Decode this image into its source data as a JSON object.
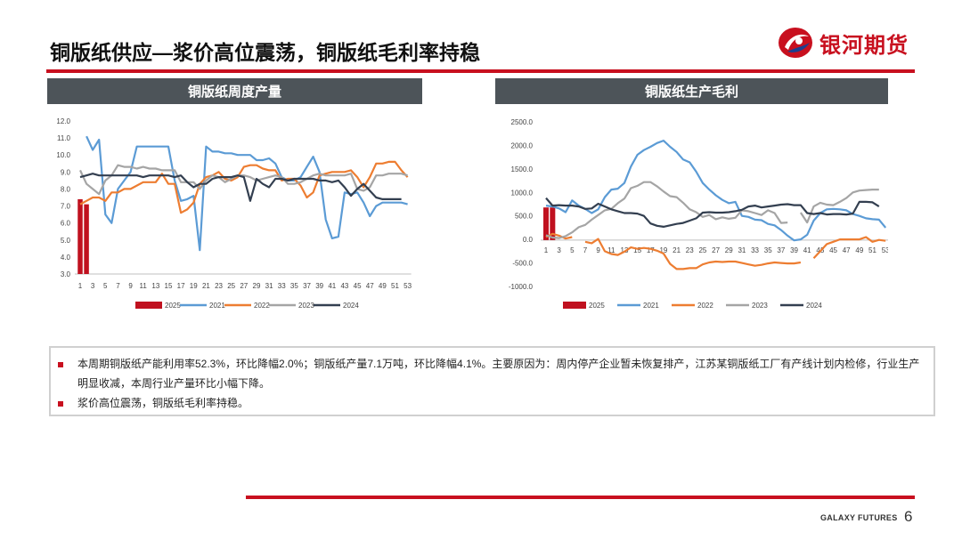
{
  "header": {
    "title": "铜版纸供应—浆价高位震荡，铜版纸毛利率持稳"
  },
  "logo": {
    "text": "银河期货",
    "icon": "galaxy-futures-logo-icon",
    "color": "#c8101f"
  },
  "footer": {
    "brand": "GALAXY FUTURES",
    "page": "6"
  },
  "notes": [
    "本周期铜版纸产能利用率52.3%，环比降幅2.0%；铜版纸产量7.1万吨，环比降幅4.1%。主要原因为：周内停产企业暂未恢复排产，江苏某铜版纸工厂有产线计划内检修，行业生产明显收减，本周行业产量环比小幅下降。",
    "浆价高位震荡，铜版纸毛利率持稳。"
  ],
  "chart_data": [
    {
      "type": "line",
      "title": "铜版纸周度产量",
      "ylim": [
        3.0,
        12.0
      ],
      "yticks": [
        "3.0",
        "4.0",
        "5.0",
        "6.0",
        "7.0",
        "8.0",
        "9.0",
        "10.0",
        "11.0",
        "12.0"
      ],
      "xticks": [
        "1",
        "3",
        "5",
        "7",
        "9",
        "11",
        "13",
        "15",
        "17",
        "19",
        "21",
        "23",
        "25",
        "27",
        "29",
        "31",
        "33",
        "35",
        "37",
        "39",
        "41",
        "43",
        "45",
        "47",
        "49",
        "51",
        "53"
      ],
      "legend_position": "bottom",
      "series": [
        {
          "name": "2025",
          "kind": "bar",
          "color": "#c0111f",
          "x": [
            1,
            2
          ],
          "values": [
            7.4,
            7.1
          ]
        },
        {
          "name": "2021",
          "kind": "line",
          "color": "#5b9bd5",
          "x": [
            2,
            3,
            4,
            5,
            6,
            7,
            8,
            9,
            10,
            11,
            12,
            13,
            14,
            15,
            16,
            17,
            18,
            19,
            20,
            21,
            22,
            23,
            24,
            25,
            26,
            27,
            28,
            29,
            30,
            31,
            32,
            33,
            34,
            35,
            36,
            37,
            38,
            39,
            40,
            41,
            42,
            43,
            44,
            45,
            46,
            47,
            48,
            49,
            50,
            51,
            52,
            53
          ],
          "values": [
            11.1,
            10.3,
            10.9,
            6.5,
            6.0,
            8.0,
            8.5,
            9.0,
            10.5,
            10.5,
            10.5,
            10.5,
            10.5,
            10.5,
            8.5,
            7.3,
            7.4,
            7.6,
            4.4,
            10.5,
            10.2,
            10.2,
            10.1,
            10.1,
            10.0,
            10.0,
            10.0,
            9.7,
            9.7,
            9.8,
            9.5,
            8.7,
            8.5,
            8.5,
            8.7,
            9.3,
            9.9,
            9.0,
            6.2,
            5.1,
            5.2,
            7.8,
            7.7,
            7.8,
            7.2,
            6.4,
            7.0,
            7.2,
            7.2,
            7.2,
            7.2,
            7.1
          ]
        },
        {
          "name": "2022",
          "kind": "line",
          "color": "#ed7d31",
          "x": [
            1,
            2,
            3,
            4,
            5,
            6,
            7,
            8,
            9,
            10,
            11,
            12,
            13,
            14,
            15,
            16,
            17,
            18,
            19,
            20,
            21,
            22,
            23,
            24,
            25,
            26,
            27,
            28,
            29,
            30,
            31,
            32,
            33,
            34,
            35,
            36,
            37,
            38,
            39,
            40,
            41,
            42,
            43,
            44,
            45,
            46,
            47,
            48,
            49,
            50,
            51,
            52,
            53
          ],
          "values": [
            7.1,
            7.3,
            7.5,
            7.5,
            7.3,
            7.8,
            7.8,
            8.0,
            8.0,
            8.2,
            8.4,
            8.4,
            8.4,
            8.9,
            8.3,
            8.3,
            6.6,
            6.8,
            7.2,
            8.3,
            8.7,
            8.8,
            9.0,
            8.6,
            8.5,
            8.7,
            9.3,
            9.4,
            9.4,
            9.2,
            9.1,
            9.1,
            8.5,
            8.6,
            8.6,
            8.2,
            7.5,
            7.8,
            8.8,
            8.9,
            9.0,
            9.0,
            9.0,
            9.1,
            8.7,
            8.1,
            8.7,
            9.5,
            9.5,
            9.6,
            9.6,
            9.1,
            8.7
          ]
        },
        {
          "name": "2023",
          "kind": "line",
          "color": "#a5a5a5",
          "x": [
            1,
            2,
            3,
            4,
            5,
            6,
            7,
            8,
            9,
            10,
            11,
            12,
            13,
            14,
            15,
            16,
            17,
            18,
            19,
            20,
            21,
            22,
            23,
            24,
            25,
            26,
            27,
            28,
            29,
            30,
            31,
            32,
            33,
            34,
            35,
            36,
            37,
            38,
            39,
            40,
            41,
            42,
            43,
            44,
            45,
            46,
            47,
            48,
            49,
            50,
            51,
            52,
            53
          ],
          "values": [
            9.1,
            8.3,
            8.0,
            7.7,
            8.5,
            8.8,
            9.4,
            9.3,
            9.3,
            9.2,
            9.3,
            9.2,
            9.2,
            9.1,
            9.1,
            9.1,
            8.4,
            8.4,
            8.4,
            8.0,
            8.5,
            8.8,
            8.7,
            8.4,
            8.6,
            8.8,
            8.8,
            8.7,
            8.5,
            8.6,
            8.7,
            8.8,
            8.7,
            8.3,
            8.3,
            8.4,
            8.6,
            8.8,
            8.9,
            8.8,
            8.8,
            8.8,
            8.8,
            8.9,
            8.0,
            7.9,
            8.1,
            8.8,
            8.8,
            8.9,
            8.9,
            8.9,
            8.8
          ]
        },
        {
          "name": "2024",
          "kind": "line",
          "color": "#333f50",
          "x": [
            1,
            2,
            3,
            4,
            5,
            6,
            7,
            8,
            9,
            10,
            11,
            12,
            13,
            14,
            15,
            16,
            17,
            18,
            19,
            20,
            21,
            22,
            23,
            24,
            25,
            26,
            27,
            28,
            29,
            30,
            31,
            32,
            33,
            34,
            35,
            36,
            37,
            38,
            39,
            40,
            41,
            42,
            43,
            44,
            45,
            46,
            47,
            48,
            49,
            50,
            51,
            52
          ],
          "values": [
            8.7,
            8.8,
            8.9,
            8.8,
            8.8,
            8.8,
            8.8,
            8.8,
            8.8,
            8.8,
            8.7,
            8.8,
            8.8,
            8.8,
            8.8,
            8.7,
            8.8,
            8.4,
            8.1,
            8.3,
            8.3,
            8.6,
            8.7,
            8.7,
            8.7,
            8.8,
            8.7,
            7.3,
            8.6,
            8.3,
            8.1,
            8.6,
            8.6,
            8.5,
            8.6,
            8.6,
            8.6,
            8.6,
            8.5,
            8.5,
            8.4,
            8.5,
            8.1,
            7.6,
            8.0,
            8.3,
            7.9,
            7.5,
            7.4,
            7.4,
            7.4,
            7.4
          ]
        }
      ]
    },
    {
      "type": "line",
      "title": "铜版纸生产毛利",
      "ylim": [
        -1000,
        2500
      ],
      "yticks": [
        "-1000.0",
        "-500.0",
        "0.0",
        "500.0",
        "1000.0",
        "1500.0",
        "2000.0",
        "2500.0"
      ],
      "xticks": [
        "1",
        "3",
        "5",
        "7",
        "9",
        "11",
        "13",
        "15",
        "17",
        "19",
        "21",
        "23",
        "25",
        "27",
        "29",
        "31",
        "33",
        "35",
        "37",
        "39",
        "41",
        "43",
        "45",
        "47",
        "49",
        "51",
        "53"
      ],
      "legend_position": "bottom",
      "series": [
        {
          "name": "2025",
          "kind": "bar",
          "color": "#c0111f",
          "x": [
            1,
            2
          ],
          "values": [
            680,
            680
          ]
        },
        {
          "name": "2021",
          "kind": "line",
          "color": "#5b9bd5",
          "x": [
            1,
            2,
            3,
            4,
            5,
            6,
            7,
            8,
            9,
            10,
            11,
            12,
            13,
            14,
            15,
            16,
            17,
            18,
            19,
            20,
            21,
            22,
            23,
            24,
            25,
            26,
            27,
            28,
            29,
            30,
            31,
            32,
            33,
            34,
            35,
            36,
            37,
            38,
            39,
            40,
            41,
            42,
            43,
            44,
            45,
            46,
            47,
            48,
            49,
            50,
            51,
            52,
            53
          ],
          "values": [
            720,
            700,
            660,
            580,
            830,
            720,
            650,
            560,
            640,
            900,
            1060,
            1080,
            1200,
            1550,
            1800,
            1900,
            1970,
            2050,
            2100,
            1970,
            1860,
            1700,
            1640,
            1440,
            1200,
            1060,
            940,
            840,
            770,
            800,
            500,
            480,
            420,
            410,
            330,
            300,
            200,
            80,
            -20,
            0,
            100,
            400,
            560,
            640,
            650,
            640,
            620,
            540,
            500,
            450,
            430,
            420,
            250
          ]
        },
        {
          "name": "2022",
          "kind": "line",
          "color": "#ed7d31",
          "x": [
            1,
            2,
            3,
            4,
            5,
            7,
            8,
            9,
            10,
            11,
            12,
            13,
            14,
            15,
            16,
            17,
            18,
            19,
            20,
            21,
            22,
            23,
            24,
            25,
            26,
            27,
            28,
            29,
            30,
            31,
            32,
            33,
            34,
            35,
            36,
            37,
            38,
            39,
            40,
            42,
            43,
            44,
            45,
            46,
            47,
            48,
            49,
            50,
            51,
            52,
            53
          ],
          "values": [
            50,
            120,
            80,
            20,
            50,
            -50,
            -80,
            10,
            -250,
            -310,
            -330,
            -260,
            -170,
            -200,
            -180,
            -200,
            -240,
            -300,
            -520,
            -630,
            -630,
            -610,
            -610,
            -530,
            -490,
            -470,
            -480,
            -470,
            -470,
            -500,
            -530,
            -560,
            -540,
            -510,
            -490,
            -500,
            -510,
            -510,
            -490,
            -400,
            -250,
            -100,
            -50,
            0,
            0,
            0,
            0,
            50,
            -50,
            -10,
            -30
          ]
        },
        {
          "name": "2023",
          "kind": "line",
          "color": "#a5a5a5",
          "x": [
            1,
            2,
            3,
            4,
            5,
            6,
            7,
            8,
            9,
            10,
            11,
            12,
            13,
            14,
            15,
            16,
            17,
            18,
            19,
            20,
            21,
            22,
            23,
            24,
            25,
            26,
            27,
            28,
            29,
            30,
            31,
            32,
            33,
            34,
            35,
            36,
            37,
            38,
            40,
            41,
            42,
            43,
            44,
            45,
            46,
            47,
            48,
            49,
            50,
            51,
            52
          ],
          "values": [
            90,
            40,
            30,
            70,
            150,
            260,
            310,
            420,
            520,
            620,
            650,
            770,
            870,
            1090,
            1140,
            1220,
            1220,
            1130,
            1020,
            920,
            900,
            780,
            640,
            580,
            480,
            520,
            430,
            470,
            440,
            460,
            620,
            600,
            560,
            520,
            620,
            560,
            350,
            360,
            570,
            360,
            700,
            780,
            740,
            730,
            800,
            880,
            1000,
            1040,
            1050,
            1060,
            1060
          ]
        },
        {
          "name": "2024",
          "kind": "line",
          "color": "#333f50",
          "x": [
            1,
            2,
            3,
            4,
            5,
            6,
            7,
            8,
            9,
            10,
            11,
            12,
            13,
            14,
            15,
            16,
            17,
            18,
            19,
            20,
            21,
            22,
            23,
            24,
            25,
            26,
            27,
            28,
            29,
            30,
            31,
            32,
            33,
            34,
            35,
            36,
            37,
            38,
            39,
            40,
            41,
            42,
            43,
            44,
            45,
            46,
            47,
            48,
            49,
            50,
            51,
            52
          ],
          "values": [
            880,
            720,
            730,
            720,
            720,
            700,
            650,
            660,
            760,
            700,
            640,
            600,
            560,
            560,
            550,
            500,
            340,
            290,
            270,
            300,
            330,
            350,
            400,
            450,
            570,
            580,
            570,
            570,
            580,
            600,
            630,
            700,
            720,
            680,
            700,
            720,
            740,
            750,
            730,
            730,
            560,
            540,
            560,
            530,
            540,
            540,
            530,
            550,
            800,
            800,
            790,
            700
          ]
        }
      ]
    }
  ]
}
